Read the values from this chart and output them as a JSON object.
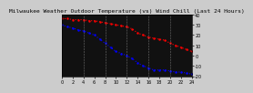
{
  "title": "Milwaukee Weather Outdoor Temperature (vs) Wind Chill (Last 24 Hours)",
  "bg_color": "#cccccc",
  "plot_bg_color": "#111111",
  "grid_color": "#888888",
  "temp_color": "#ff0000",
  "windchill_color": "#0000ff",
  "annotation_color": "#000000",
  "ylim": [
    -20,
    40
  ],
  "ytick_values": [
    40,
    30,
    20,
    10,
    0,
    -10,
    -20
  ],
  "ytick_labels": [
    "40",
    "30",
    "20",
    "10",
    "0",
    "-10",
    "-20"
  ],
  "hours": [
    0,
    1,
    2,
    3,
    4,
    5,
    6,
    7,
    8,
    9,
    10,
    11,
    12,
    13,
    14,
    15,
    16,
    17,
    18,
    19,
    20,
    21,
    22,
    23,
    24
  ],
  "temp": [
    36,
    36,
    35,
    35,
    35,
    34,
    34,
    33,
    32,
    31,
    30,
    29,
    28,
    26,
    22,
    20,
    18,
    17,
    16,
    15,
    12,
    10,
    8,
    6,
    4
  ],
  "windchill": [
    30,
    28,
    27,
    25,
    24,
    22,
    20,
    16,
    12,
    8,
    4,
    2,
    0,
    -3,
    -7,
    -10,
    -12,
    -14,
    -14,
    -14,
    -15,
    -16,
    -16,
    -17,
    -18
  ],
  "title_fontsize": 4.5,
  "tick_fontsize": 3.5,
  "linewidth": 0.8,
  "markersize": 1.5,
  "vgrid_positions": [
    4,
    8,
    12,
    16,
    20
  ],
  "xlim": [
    0,
    24
  ],
  "xtick_step": 2
}
